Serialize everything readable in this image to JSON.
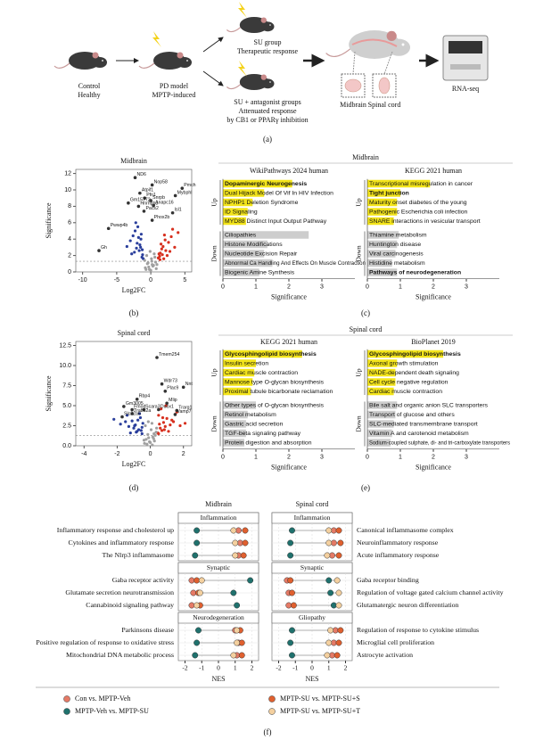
{
  "diagram": {
    "labels": [
      "Control",
      "Healthy",
      "PD model",
      "MPTP-induced",
      "SU group",
      "Therapeutic response",
      "SU + antagonist groups",
      "Attenuated response",
      "by CB1 or PPARγ inhibition",
      "Midbrain",
      "Spinal cord",
      "RNA-seq"
    ],
    "caption": "(a)"
  },
  "captions": {
    "b": "(b)",
    "c": "(c)",
    "d": "(d)",
    "e": "(e)",
    "f": "(f)"
  },
  "section_titles": {
    "c": "Midbrain",
    "e": "Spinal cord"
  },
  "chart_data": [
    {
      "type": "scatter",
      "title": "Midbrain",
      "xlabel": "Log2FC",
      "ylabel": "Significance",
      "xlim": [
        -11,
        6
      ],
      "ylim": [
        0,
        12.5
      ],
      "xticks": [
        -10,
        -5,
        0,
        5
      ],
      "yticks": [
        0,
        2,
        4,
        6,
        8,
        10,
        12
      ],
      "threshold_y": 1.3,
      "series": [
        {
          "color": "#2b3f9c",
          "x": [
            -1.2,
            -1.5,
            -1.8,
            -2.0,
            -2.3,
            -2.6,
            -1.3,
            -1.7,
            -2.1,
            -3.0,
            -1.4,
            -1.9,
            -2.4,
            -1.1,
            -1.6,
            -2.8,
            -3.5,
            -1.25,
            -2.2,
            -1.45
          ],
          "values": [
            2.1,
            3.0,
            4.2,
            3.5,
            5.0,
            4.4,
            1.8,
            2.6,
            2.9,
            3.8,
            4.6,
            5.5,
            2.4,
            1.6,
            3.3,
            2.2,
            3.1,
            2.7,
            6.0,
            4.0
          ]
        },
        {
          "color": "#d7301f",
          "x": [
            1.1,
            1.4,
            1.8,
            2.2,
            2.6,
            3.0,
            1.3,
            1.6,
            2.0,
            3.5,
            1.2,
            1.9,
            2.4,
            4.0,
            1.5,
            2.8,
            3.2,
            1.7,
            2.1,
            1.35
          ],
          "values": [
            1.7,
            2.3,
            3.1,
            2.6,
            3.6,
            4.3,
            1.9,
            2.8,
            4.5,
            3.0,
            2.2,
            1.6,
            2.0,
            4.8,
            3.4,
            2.5,
            5.2,
            2.1,
            3.9,
            1.5
          ]
        },
        {
          "color": "#a0a0a0",
          "x": [
            -0.8,
            -0.5,
            -0.2,
            0.1,
            0.4,
            0.7,
            -0.6,
            -0.3,
            0.2,
            0.5,
            0.8,
            -0.9,
            0.0,
            0.3,
            -0.4,
            0.6,
            -0.1,
            0.9,
            -0.7,
            0.15
          ],
          "values": [
            0.5,
            1.0,
            0.3,
            1.6,
            0.8,
            1.2,
            2.0,
            0.6,
            0.9,
            2.2,
            0.4,
            1.4,
            0.2,
            0.7,
            1.1,
            1.8,
            2.5,
            0.9,
            0.3,
            1.3
          ]
        }
      ],
      "annotations": [
        {
          "text": "ND6",
          "x": -2.3,
          "y": 11.5
        },
        {
          "text": "Nop58",
          "x": 0.2,
          "y": 10.6
        },
        {
          "text": "Atpif1",
          "x": -1.6,
          "y": 9.6
        },
        {
          "text": "Pfn1",
          "x": -0.9,
          "y": 9.0
        },
        {
          "text": "Gm15772",
          "x": -3.3,
          "y": 8.4
        },
        {
          "text": "Hnrnph3",
          "x": -1.8,
          "y": 8.0
        },
        {
          "text": "Snrpb",
          "x": 0.0,
          "y": 8.7
        },
        {
          "text": "Anapc16",
          "x": 0.4,
          "y": 8.1
        },
        {
          "text": "Pacs2",
          "x": -1.0,
          "y": 7.4
        },
        {
          "text": "Phox2b",
          "x": 0.2,
          "y": 6.3
        },
        {
          "text": "Pmch",
          "x": 4.6,
          "y": 10.2
        },
        {
          "text": "Mybphl",
          "x": 3.6,
          "y": 9.3
        },
        {
          "text": "Isl1",
          "x": 3.2,
          "y": 7.2
        },
        {
          "text": "Pwwp4b",
          "x": -6.2,
          "y": 5.3
        },
        {
          "text": "Gh",
          "x": -7.6,
          "y": 2.6
        }
      ]
    },
    {
      "type": "bar",
      "orientation": "horizontal",
      "title": "WikiPathways 2024 human",
      "xlabel": "Significance",
      "xlim": [
        0,
        4
      ],
      "xticks": [
        0,
        1,
        2,
        3
      ],
      "groups": [
        {
          "name": "Up",
          "color": "#f3e41b",
          "categories": [
            "Dopaminergic Neurogenesis",
            "Dual Hijack Model Of Vif In HIV Infection",
            "NPHP1 Deletion Syndrome",
            "ID Signaling",
            "MYD88 Distinct Input Output Pathway"
          ],
          "values": [
            2.1,
            1.25,
            0.9,
            0.75,
            0.7
          ],
          "bold": [
            0
          ]
        },
        {
          "name": "Down",
          "color": "#cdcdcd",
          "categories": [
            "Ciliopathies",
            "Histone Modifications",
            "Nucleotide Excision Repair",
            "Abnormal Ca Handling And Effects On Muscle Contraction",
            "Biogenic Amine Synthesis"
          ],
          "values": [
            2.6,
            1.35,
            1.25,
            1.5,
            1.1
          ]
        }
      ]
    },
    {
      "type": "bar",
      "orientation": "horizontal",
      "title": "KEGG 2021 human",
      "xlabel": "Significance",
      "xlim": [
        0,
        4
      ],
      "xticks": [
        0,
        1,
        2,
        3
      ],
      "groups": [
        {
          "name": "Up",
          "color": "#f3e41b",
          "categories": [
            "Transcriptional misregulation in cancer",
            "Tight junction",
            "Maturity onset diabetes of the young",
            "Pathogenic Escherichia coli infection",
            "SNARE interactions in vesicular transport"
          ],
          "values": [
            1.9,
            1.0,
            0.9,
            0.9,
            0.8
          ],
          "bold": [
            1
          ]
        },
        {
          "name": "Down",
          "color": "#cdcdcd",
          "categories": [
            "Thiamine metabolism",
            "Huntington disease",
            "Viral carcinogenesis",
            "Histidine metabolism",
            "Pathways of neurodegeneration"
          ],
          "values": [
            0.95,
            0.9,
            0.85,
            0.75,
            0.9
          ],
          "bold": [
            4
          ]
        }
      ]
    },
    {
      "type": "scatter",
      "title": "Spinal cord",
      "xlabel": "Log2FC",
      "ylabel": "Significance",
      "xlim": [
        -4.5,
        2.5
      ],
      "ylim": [
        0,
        13
      ],
      "xticks": [
        -4,
        -2,
        0,
        2
      ],
      "yticks": [
        {
          "value": 0,
          "label": "0.0"
        },
        2.5,
        {
          "value": 5,
          "label": "5.0"
        },
        7.5,
        {
          "value": 10,
          "label": "10.0"
        },
        12.5
      ],
      "threshold_y": 1.3,
      "series": [
        {
          "color": "#2b3f9c",
          "x": [
            -0.5,
            -0.7,
            -0.9,
            -1.1,
            -1.3,
            -0.6,
            -0.8,
            -1.0,
            -1.5,
            -0.45,
            -0.65,
            -1.2,
            -1.8,
            -0.55,
            -0.75,
            -0.95,
            -1.4,
            -2.2,
            -0.5,
            -0.85
          ],
          "values": [
            1.5,
            2.0,
            2.6,
            3.1,
            2.4,
            3.5,
            1.8,
            2.2,
            3.0,
            2.8,
            4.0,
            1.6,
            2.7,
            1.9,
            3.2,
            2.5,
            3.8,
            3.3,
            2.3,
            1.7
          ]
        },
        {
          "color": "#d7301f",
          "x": [
            0.45,
            0.6,
            0.8,
            1.0,
            1.2,
            0.5,
            0.7,
            0.9,
            1.4,
            1.6,
            0.55,
            0.75,
            1.1,
            1.8,
            0.65,
            0.85,
            1.3,
            0.5,
            0.95,
            2.1
          ],
          "values": [
            1.6,
            2.2,
            2.9,
            3.4,
            2.6,
            3.8,
            1.9,
            2.4,
            3.0,
            4.2,
            2.7,
            3.5,
            1.8,
            2.5,
            4.6,
            2.0,
            3.2,
            1.5,
            5.0,
            2.8
          ]
        },
        {
          "color": "#a0a0a0",
          "x": [
            -0.35,
            -0.25,
            -0.15,
            -0.05,
            0.05,
            0.15,
            0.25,
            0.35,
            -0.3,
            -0.2,
            -0.1,
            0.0,
            0.1,
            0.2,
            0.3,
            -0.38,
            0.38,
            -0.12,
            0.12,
            0.22
          ],
          "values": [
            0.3,
            0.8,
            1.4,
            0.5,
            2.0,
            1.1,
            0.6,
            1.7,
            2.5,
            0.2,
            1.0,
            0.4,
            2.8,
            0.9,
            1.3,
            0.7,
            2.2,
            3.0,
            0.1,
            1.5
          ]
        }
      ],
      "annotations": [
        {
          "text": "Tmem254",
          "x": 0.4,
          "y": 11.0
        },
        {
          "text": "Wdr73",
          "x": 0.7,
          "y": 7.7
        },
        {
          "text": "Nnt",
          "x": 2.0,
          "y": 7.3
        },
        {
          "text": "Plac9",
          "x": 0.9,
          "y": 6.8
        },
        {
          "text": "Mlip",
          "x": 1.0,
          "y": 5.3
        },
        {
          "text": "Duox1",
          "x": 0.5,
          "y": 4.5
        },
        {
          "text": "Trarg1",
          "x": 1.6,
          "y": 4.4
        },
        {
          "text": "Vamp7",
          "x": 1.5,
          "y": 3.9
        },
        {
          "text": "Rbp4",
          "x": -0.8,
          "y": 5.8
        },
        {
          "text": "Gm3005",
          "x": -1.6,
          "y": 4.9
        },
        {
          "text": "Fmod",
          "x": -1.1,
          "y": 4.5
        },
        {
          "text": "Scara3",
          "x": -0.4,
          "y": 4.5
        },
        {
          "text": "Trabd2a",
          "x": -1.1,
          "y": 4.0
        },
        {
          "text": "Slc22a6",
          "x": -1.7,
          "y": 3.6
        }
      ]
    },
    {
      "type": "bar",
      "orientation": "horizontal",
      "title": "KEGG 2021 human",
      "xlabel": "Significance",
      "xlim": [
        0,
        4
      ],
      "xticks": [
        0,
        1,
        2,
        3
      ],
      "groups": [
        {
          "name": "Up",
          "color": "#f3e41b",
          "categories": [
            "Glycosphingolipid biosynthesis",
            "Insulin secretion",
            "Cardiac muscle contraction",
            "Mannose type O-glycan biosynthesis",
            "Proximal tubule bicarbonate reclamation"
          ],
          "values": [
            2.4,
            1.0,
            0.95,
            0.9,
            0.85
          ],
          "bold": [
            0
          ]
        },
        {
          "name": "Down",
          "color": "#cdcdcd",
          "categories": [
            "Other types of O-glycan biosynthesis",
            "Retinol metabolism",
            "Gastric acid secretion",
            "TGF-beta signaling pathway",
            "Protein digestion and absorption"
          ],
          "values": [
            1.0,
            0.75,
            0.7,
            0.7,
            0.65
          ]
        }
      ]
    },
    {
      "type": "bar",
      "orientation": "horizontal",
      "title": "BioPlanet 2019",
      "xlabel": "Significance",
      "xlim": [
        0,
        4
      ],
      "xticks": [
        0,
        1,
        2,
        3
      ],
      "groups": [
        {
          "name": "Up",
          "color": "#f3e41b",
          "categories": [
            "Glycosphingolipid biosynthesis",
            "Axonal growth stimulation",
            "NADE-dependent death signaling",
            "Cell cycle negative regulation",
            "Cardiac muscle contraction"
          ],
          "values": [
            2.3,
            0.9,
            0.85,
            0.85,
            0.8
          ],
          "bold": [
            0
          ]
        },
        {
          "name": "Down",
          "color": "#cdcdcd",
          "categories": [
            "Bile salt and organic anion SLC transporters",
            "Transport of glucose and others",
            "SLC-mediated transmembrane transport",
            "Vitamin A and carotenoid metabolism",
            "Sodium-coupled sulphate, di- and tri-carboxylate transporters"
          ],
          "values": [
            0.9,
            0.85,
            0.8,
            0.75,
            0.7
          ]
        }
      ]
    },
    {
      "type": "dot",
      "xlabel": "NES",
      "xlim": [
        -2.4,
        2.4
      ],
      "xticks": [
        -2,
        -1,
        0,
        1,
        2
      ],
      "series": [
        {
          "name": "Con vs. MPTP-Veh",
          "color": "#e57a66"
        },
        {
          "name": "MPTP-Veh vs. MPTP-SU",
          "color": "#1f716d"
        },
        {
          "name": "MPTP-SU vs. MPTP-SU+S",
          "color": "#e0602f"
        },
        {
          "name": "MPTP-SU vs. MPTP-SU+T",
          "color": "#f4d09f"
        }
      ],
      "regions": [
        {
          "name": "Midbrain",
          "panels": [
            {
              "title": "Inflammation",
              "categories": [
                "Inflammatory response and cholesterol up",
                "Cytokines and inflammatory response",
                "The Nlrp3 inflammasome"
              ],
              "values": [
                [
                  1.2,
                  -1.3,
                  1.6,
                  0.9
                ],
                [
                  1.3,
                  -1.3,
                  1.6,
                  1.0
                ],
                [
                  1.2,
                  -1.4,
                  1.5,
                  1.0
                ]
              ]
            },
            {
              "title": "Synaptic",
              "categories": [
                "Gaba receptor activity",
                "Glutamate secretion neurotransmission",
                "Cannabinoid signaling pathway"
              ],
              "values": [
                [
                  -1.6,
                  1.9,
                  -1.3,
                  -1.0
                ],
                [
                  -1.5,
                  0.9,
                  -1.2,
                  -1.1
                ],
                [
                  -1.6,
                  1.1,
                  -1.1,
                  -1.3
                ]
              ]
            },
            {
              "title": "Neurodegeneration",
              "categories": [
                "Parkinsons disease",
                "Positive regulation of response to oxidative stress",
                "Mitochondrial DNA metabolic process"
              ],
              "values": [
                [
                  1.0,
                  -1.2,
                  1.3,
                  1.1
                ],
                [
                  1.2,
                  -1.3,
                  1.4,
                  1.1
                ],
                [
                  1.1,
                  -1.4,
                  1.4,
                  0.9
                ]
              ]
            }
          ]
        },
        {
          "name": "Spinal cord",
          "panels": [
            {
              "title": "Inflammation",
              "categories": [
                "Canonical inflammasome complex",
                "Neuroinflammatory response",
                "Acute inflammatory response"
              ],
              "values": [
                [
                  1.3,
                  -1.2,
                  1.6,
                  1.0
                ],
                [
                  1.3,
                  -1.3,
                  1.7,
                  1.0
                ],
                [
                  1.2,
                  -1.3,
                  1.6,
                  0.9
                ]
              ]
            },
            {
              "title": "Synaptic",
              "categories": [
                "Gaba receptor binding",
                "Regulation of voltage gated calcium channel activity",
                "Glutamatergic neuron differentiation"
              ],
              "values": [
                [
                  -1.5,
                  1.0,
                  -1.3,
                  1.5
                ],
                [
                  -1.4,
                  1.1,
                  -1.2,
                  1.6
                ],
                [
                  -1.4,
                  1.3,
                  -1.1,
                  1.6
                ]
              ]
            },
            {
              "title": "Gliopathy",
              "categories": [
                "Regulation of response to cytokine stimulus",
                "Microglial cell proliferation",
                "Astrocyte activation"
              ],
              "values": [
                [
                  1.4,
                  -1.2,
                  1.7,
                  1.1
                ],
                [
                  1.3,
                  -1.3,
                  1.6,
                  1.0
                ],
                [
                  1.2,
                  -1.2,
                  1.5,
                  0.9
                ]
              ]
            }
          ]
        }
      ]
    }
  ]
}
